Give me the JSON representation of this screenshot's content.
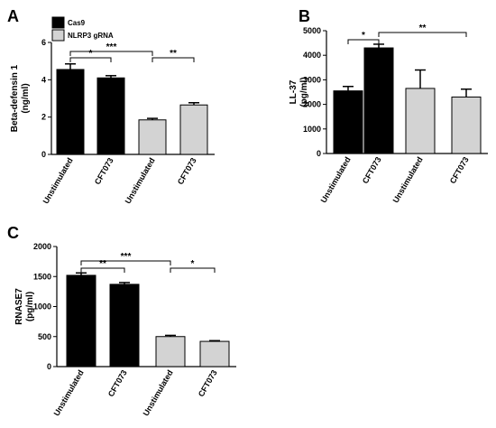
{
  "legend": [
    {
      "label": "Cas9",
      "color": "#000000"
    },
    {
      "label": "NLRP3 gRNA",
      "color": "#d3d3d3"
    }
  ],
  "chart_data": [
    {
      "type": "bar",
      "panel": "A",
      "ylabel_line1": "Beta-defensin 1",
      "ylabel_line2": "(ng/ml)",
      "ylim": [
        0,
        6
      ],
      "yticks": [
        0,
        2,
        4,
        6
      ],
      "categories": [
        "Unstimulated",
        "CFT073",
        "Unstimulated",
        "CFT073"
      ],
      "values": [
        4.55,
        4.1,
        1.85,
        2.65
      ],
      "errors": [
        0.3,
        0.12,
        0.08,
        0.12
      ],
      "groups": [
        "Cas9",
        "Cas9",
        "NLRP3 gRNA",
        "NLRP3 gRNA"
      ],
      "significance": [
        {
          "from": 0,
          "to": 1,
          "label": "*"
        },
        {
          "from": 0,
          "to": 2,
          "label": "***"
        },
        {
          "from": 2,
          "to": 3,
          "label": "**"
        }
      ]
    },
    {
      "type": "bar",
      "panel": "B",
      "ylabel_line1": "LL-37",
      "ylabel_line2": "(pg/ml)",
      "ylim": [
        0,
        5000
      ],
      "yticks": [
        0,
        1000,
        2000,
        3000,
        4000,
        5000
      ],
      "categories": [
        "Unstimulated",
        "CFT073",
        "Unstimulated",
        "CFT073"
      ],
      "values": [
        2550,
        4300,
        2650,
        2300
      ],
      "errors": [
        180,
        150,
        750,
        320
      ],
      "groups": [
        "Cas9",
        "Cas9",
        "NLRP3 gRNA",
        "NLRP3 gRNA"
      ],
      "significance": [
        {
          "from": 0,
          "to": 1,
          "label": "*"
        },
        {
          "from": 1,
          "to": 3,
          "label": "**"
        }
      ]
    },
    {
      "type": "bar",
      "panel": "C",
      "ylabel_line1": "RNASE7",
      "ylabel_line2": "(pg/ml)",
      "ylim": [
        0,
        2000
      ],
      "yticks": [
        0,
        500,
        1000,
        1500,
        2000
      ],
      "categories": [
        "Unstimulated",
        "CFT073",
        "Unstimulated",
        "CFT073"
      ],
      "values": [
        1520,
        1370,
        500,
        420
      ],
      "errors": [
        40,
        30,
        20,
        12
      ],
      "groups": [
        "Cas9",
        "Cas9",
        "NLRP3 gRNA",
        "NLRP3 gRNA"
      ],
      "significance": [
        {
          "from": 0,
          "to": 1,
          "label": "**"
        },
        {
          "from": 0,
          "to": 2,
          "label": "***"
        },
        {
          "from": 2,
          "to": 3,
          "label": "*"
        }
      ]
    }
  ]
}
